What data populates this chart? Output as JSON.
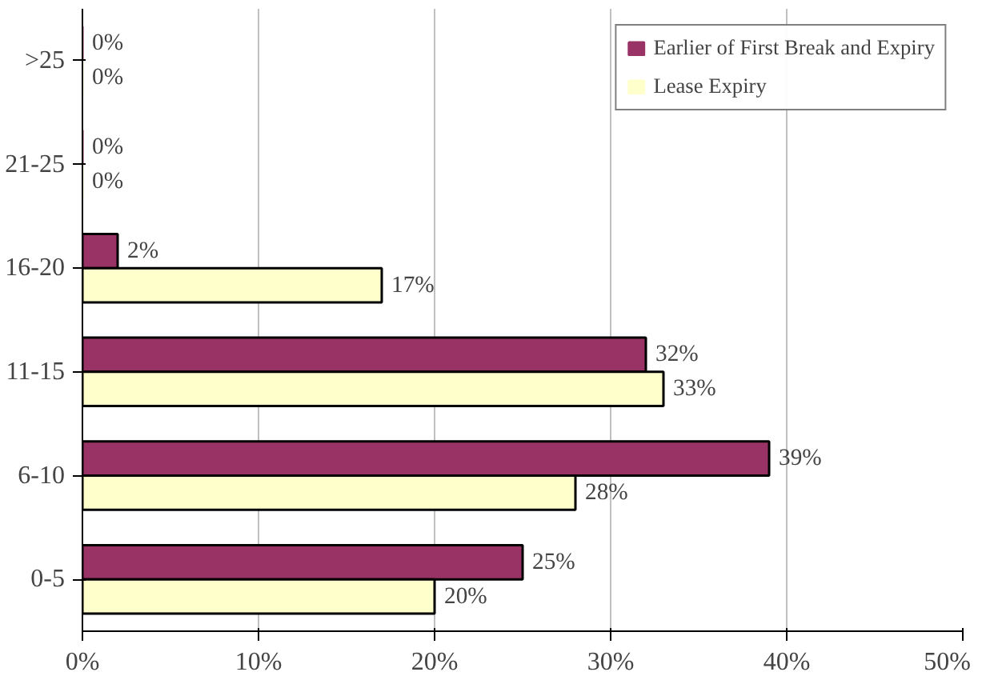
{
  "chart_data": {
    "type": "bar",
    "orientation": "horizontal",
    "categories": [
      ">25",
      "21-25",
      "16-20",
      "11-15",
      "6-10",
      "0-5"
    ],
    "series": [
      {
        "name": "Earlier of First Break and Expiry",
        "color": "#993366",
        "values": [
          0,
          0,
          2,
          32,
          39,
          25
        ],
        "value_labels": [
          "0%",
          "0%",
          "2%",
          "32%",
          "39%",
          "25%"
        ]
      },
      {
        "name": "Lease Expiry",
        "color": "#ffffcc",
        "values": [
          0,
          0,
          17,
          33,
          28,
          20
        ],
        "value_labels": [
          "0%",
          "0%",
          "17%",
          "33%",
          "28%",
          "20%"
        ]
      }
    ],
    "xlim": [
      0,
      50
    ],
    "xticks": [
      {
        "value": 0,
        "label": "0%"
      },
      {
        "value": 10,
        "label": "10%"
      },
      {
        "value": 20,
        "label": "20%"
      },
      {
        "value": 30,
        "label": "30%"
      },
      {
        "value": 40,
        "label": "40%"
      },
      {
        "value": 50,
        "label": "50%"
      }
    ],
    "grid": "x",
    "legend": "top right"
  }
}
